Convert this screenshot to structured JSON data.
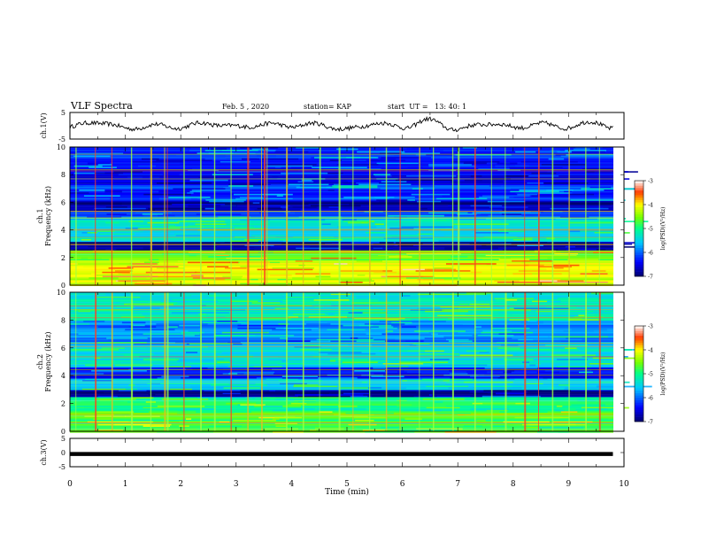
{
  "header": {
    "title": "VLF Spectra",
    "date": "Feb. 5 , 2020",
    "station": "station= KAP",
    "start": "start  UT =   13: 40: 1"
  },
  "chart_data": [
    {
      "type": "line",
      "panel": "ch1-waveform",
      "ylabel": "ch.1(V)",
      "ylim": [
        -5,
        5
      ],
      "yticks": [
        "5",
        "-5"
      ],
      "x_minutes": [
        0,
        0.5,
        1,
        1.5,
        2,
        2.5,
        3,
        3.5,
        4,
        4.5,
        5,
        5.5,
        6,
        6.5,
        7,
        7.5,
        8,
        8.5,
        9,
        9.5,
        9.8
      ],
      "y_volts": [
        -0.5,
        1.5,
        -1.0,
        0.0,
        -0.5,
        1.0,
        -0.5,
        0.5,
        0.0,
        0.5,
        -1.5,
        1.0,
        -0.5,
        2.0,
        -1.5,
        1.0,
        -0.5,
        0.5,
        -0.5,
        1.5,
        -1.0
      ]
    },
    {
      "type": "heatmap",
      "panel": "ch1-spectrogram",
      "ylabel": "ch.1 Frequency (kHz)",
      "ylim": [
        0,
        10
      ],
      "yticks": [
        "0",
        "2",
        "4",
        "6",
        "8",
        "10"
      ],
      "colorbar_label": "log(PSD)(V²/Hz)",
      "colorbar_range": [
        -7,
        -3
      ],
      "colorbar_ticks": [
        "-3",
        "-4",
        "-5",
        "-6",
        "-7"
      ],
      "bands_khz": [
        {
          "from": 0,
          "to": 1.8,
          "level": -4.2
        },
        {
          "from": 1.8,
          "to": 2.6,
          "level": -4.6
        },
        {
          "from": 2.6,
          "to": 3.2,
          "level": -6.8
        },
        {
          "from": 3.2,
          "to": 4.8,
          "level": -5.4
        },
        {
          "from": 4.8,
          "to": 5.4,
          "level": -6.0
        },
        {
          "from": 5.4,
          "to": 6.2,
          "level": -6.8
        },
        {
          "from": 6.2,
          "to": 7.4,
          "level": -6.2
        },
        {
          "from": 7.4,
          "to": 8.6,
          "level": -6.5
        },
        {
          "from": 8.6,
          "to": 10,
          "level": -6.3
        }
      ],
      "bursts_min": [
        0.1,
        0.45,
        0.75,
        1.1,
        1.45,
        1.7,
        1.75,
        2.05,
        2.35,
        2.6,
        2.9,
        3.2,
        3.45,
        3.5,
        3.55,
        3.9,
        4.2,
        4.5,
        4.85,
        5.1,
        5.4,
        5.7,
        5.95,
        6.3,
        6.55,
        6.9,
        7.0,
        7.3,
        7.6,
        7.85,
        8.2,
        8.45,
        8.7,
        9.0,
        9.3,
        9.55
      ]
    },
    {
      "type": "heatmap",
      "panel": "ch2-spectrogram",
      "ylabel": "ch.2 Frequency (kHz)",
      "ylim": [
        0,
        10
      ],
      "yticks": [
        "0",
        "2",
        "4",
        "6",
        "8",
        "10"
      ],
      "colorbar_label": "log(PSD)(V²/Hz)",
      "colorbar_range": [
        -7,
        -3
      ],
      "colorbar_ticks": [
        "-3",
        "-4",
        "-5",
        "-6",
        "-7"
      ],
      "bands_khz": [
        {
          "from": 0,
          "to": 1.5,
          "level": -4.8
        },
        {
          "from": 1.5,
          "to": 2.5,
          "level": -5.0
        },
        {
          "from": 2.5,
          "to": 3.0,
          "level": -6.8
        },
        {
          "from": 3.0,
          "to": 3.8,
          "level": -5.6
        },
        {
          "from": 3.8,
          "to": 4.6,
          "level": -6.4
        },
        {
          "from": 4.6,
          "to": 6.2,
          "level": -5.4
        },
        {
          "from": 6.2,
          "to": 8.0,
          "level": -5.9
        },
        {
          "from": 8.0,
          "to": 10,
          "level": -5.3
        }
      ],
      "bursts_min": [
        0.1,
        0.45,
        0.75,
        1.1,
        1.45,
        1.7,
        1.75,
        2.05,
        2.35,
        2.6,
        2.9,
        3.2,
        3.45,
        3.9,
        4.2,
        4.5,
        4.85,
        5.1,
        5.4,
        5.7,
        5.95,
        6.3,
        6.55,
        6.9,
        7.3,
        7.6,
        7.85,
        8.2,
        8.45,
        8.7,
        9.0,
        9.3,
        9.55
      ]
    },
    {
      "type": "line",
      "panel": "ch3-waveform",
      "ylabel": "ch.3(V)",
      "ylim": [
        -5,
        5
      ],
      "yticks": [
        "5",
        "0",
        "-5"
      ],
      "x_minutes": [
        0,
        9.8
      ],
      "y_volts": [
        -0.5,
        -0.5
      ]
    }
  ],
  "xaxis": {
    "label": "Time  (min)",
    "ticks": [
      "0",
      "1",
      "2",
      "3",
      "4",
      "5",
      "6",
      "7",
      "8",
      "9",
      "10"
    ],
    "range": [
      0,
      10
    ]
  }
}
